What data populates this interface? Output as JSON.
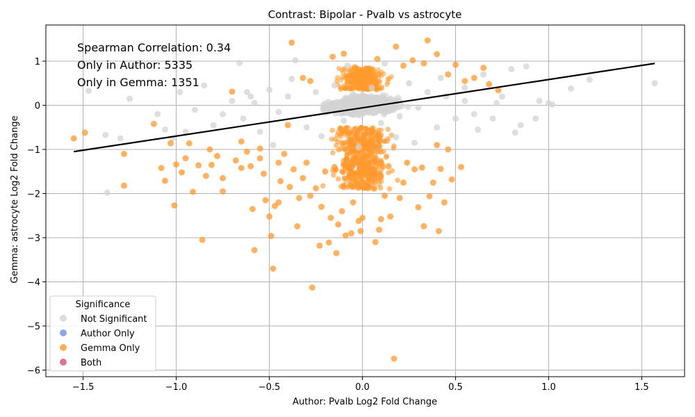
{
  "chart_data": {
    "type": "scatter",
    "title": "Contrast: Bipolar - Pvalb vs astrocyte",
    "xlabel": "Author: Pvalb Log2 Fold Change",
    "ylabel": "Gemma: astrocyte Log2 Fold Change",
    "xlim": [
      -1.7,
      1.73
    ],
    "ylim": [
      -6.15,
      1.82
    ],
    "xticks": [
      -1.5,
      -1.0,
      -0.5,
      0.0,
      0.5,
      1.0,
      1.5
    ],
    "xtick_labels": [
      "−1.5",
      "−1.0",
      "−0.5",
      "0.0",
      "0.5",
      "1.0",
      "1.5"
    ],
    "yticks": [
      1,
      0,
      -1,
      -2,
      -3,
      -4,
      -5,
      -6
    ],
    "ytick_labels": [
      "1",
      "0",
      "−1",
      "−2",
      "−3",
      "−4",
      "−5",
      "−6"
    ],
    "grid": true,
    "annotations": [
      "Spearman Correlation: 0.34",
      "Only in Author: 5335",
      "Only in Gemma: 1351"
    ],
    "legend": {
      "title": "Significance",
      "placement": "lower-left",
      "entries": [
        {
          "label": "Not Significant",
          "color": "#d3d3d3"
        },
        {
          "label": "Author Only",
          "color": "#6f8fdc"
        },
        {
          "label": "Gemma Only",
          "color": "#ff9a2e"
        },
        {
          "label": "Both",
          "color": "#d9536a"
        }
      ]
    },
    "regression_line": {
      "x": [
        -1.55,
        1.57
      ],
      "y": [
        -1.05,
        0.95
      ],
      "color": "#000000"
    },
    "series": [
      {
        "name": "Gemma Only",
        "color": "#ff9a2e",
        "points": [
          [
            -1.55,
            -0.75
          ],
          [
            -1.49,
            -0.62
          ],
          [
            -1.28,
            -1.1
          ],
          [
            -1.28,
            -1.82
          ],
          [
            -1.12,
            -0.42
          ],
          [
            -1.08,
            -1.42
          ],
          [
            -1.06,
            -1.71
          ],
          [
            -1.03,
            -0.86
          ],
          [
            -1.01,
            -2.27
          ],
          [
            -1.0,
            -1.34
          ],
          [
            -0.97,
            -1.52
          ],
          [
            -0.93,
            -0.86
          ],
          [
            -0.91,
            -1.96
          ],
          [
            -0.88,
            -1.36
          ],
          [
            -0.86,
            -3.05
          ],
          [
            -0.84,
            -1.6
          ],
          [
            -0.81,
            -1.35
          ],
          [
            -0.78,
            -1.15
          ],
          [
            -0.75,
            -1.65
          ],
          [
            -0.75,
            -1.95
          ],
          [
            -0.7,
            0.31
          ],
          [
            -0.68,
            -1.25
          ],
          [
            -0.65,
            -1.42
          ],
          [
            -0.62,
            -1.05
          ],
          [
            -0.6,
            -1.38
          ],
          [
            -0.59,
            -2.35
          ],
          [
            -0.58,
            -3.28
          ],
          [
            -0.55,
            -1.2
          ],
          [
            -0.53,
            -1.55
          ],
          [
            -0.52,
            -2.15
          ],
          [
            -0.5,
            -2.52
          ],
          [
            -0.49,
            -2.96
          ],
          [
            -0.48,
            -3.7
          ],
          [
            -0.47,
            -2.28
          ],
          [
            -0.45,
            -2.2
          ],
          [
            -0.44,
            -1.72
          ],
          [
            -0.42,
            -1.1
          ],
          [
            -0.4,
            -0.45
          ],
          [
            -0.39,
            -1.85
          ],
          [
            -0.38,
            1.42
          ],
          [
            -0.37,
            -1.45
          ],
          [
            -0.35,
            -2.74
          ],
          [
            -0.34,
            -2.1
          ],
          [
            -0.32,
            -1.65
          ],
          [
            -0.3,
            -1.3
          ],
          [
            -0.28,
            -2.05
          ],
          [
            -0.27,
            -4.13
          ],
          [
            -0.25,
            -1.88
          ],
          [
            -0.23,
            -3.18
          ],
          [
            -0.22,
            -2.3
          ],
          [
            -0.2,
            -1.5
          ],
          [
            -0.18,
            -3.11
          ],
          [
            -0.17,
            -2.55
          ],
          [
            -0.15,
            -1.4
          ],
          [
            -0.14,
            -3.35
          ],
          [
            -0.13,
            -2.7
          ],
          [
            -0.11,
            -2.4
          ],
          [
            -0.1,
            -1.85
          ],
          [
            -0.09,
            -2.95
          ],
          [
            -0.07,
            -1.6
          ],
          [
            -0.06,
            -2.9
          ],
          [
            -0.05,
            -2.2
          ],
          [
            -0.04,
            0.86
          ],
          [
            -0.03,
            -1.75
          ],
          [
            -0.01,
            -2.85
          ],
          [
            -0.02,
            -2.62
          ],
          [
            0.0,
            -2.55
          ],
          [
            0.02,
            -1.45
          ],
          [
            0.05,
            -1.5
          ],
          [
            0.07,
            -3.1
          ],
          [
            0.09,
            -2.82
          ],
          [
            0.1,
            -2.58
          ],
          [
            0.12,
            -2.05
          ],
          [
            0.14,
            -1.38
          ],
          [
            0.15,
            -2.52
          ],
          [
            0.17,
            -5.74
          ],
          [
            0.18,
            1.33
          ],
          [
            0.2,
            -2.1
          ],
          [
            0.22,
            -1.75
          ],
          [
            0.24,
            -1.3
          ],
          [
            0.28,
            -1.45
          ],
          [
            0.3,
            -2.31
          ],
          [
            0.32,
            -1.41
          ],
          [
            0.33,
            -2.74
          ],
          [
            0.35,
            1.47
          ],
          [
            0.36,
            -2.06
          ],
          [
            0.38,
            -1.75
          ],
          [
            0.4,
            1.16
          ],
          [
            0.41,
            -2.85
          ],
          [
            0.42,
            -1.44
          ],
          [
            0.44,
            -2.2
          ],
          [
            0.46,
            -1.0
          ],
          [
            0.48,
            -1.68
          ],
          [
            0.5,
            0.92
          ],
          [
            0.53,
            -1.4
          ],
          [
            0.55,
            0.55
          ],
          [
            0.6,
            0.62
          ],
          [
            0.65,
            0.85
          ],
          [
            0.68,
            0.48
          ],
          [
            0.73,
            0.34
          ],
          [
            -0.16,
            1.1
          ],
          [
            -0.1,
            1.17
          ],
          [
            0.08,
            1.05
          ],
          [
            0.22,
            0.9
          ],
          [
            0.27,
            1.02
          ],
          [
            0.33,
            0.95
          ],
          [
            -0.28,
            0.55
          ],
          [
            -0.32,
            0.62
          ],
          [
            0.46,
            0.7
          ],
          [
            -0.45,
            -1.3
          ],
          [
            -0.55,
            -0.98
          ],
          [
            -0.65,
            -0.82
          ],
          [
            -0.82,
            -1.0
          ],
          [
            -0.95,
            -1.2
          ],
          [
            0.4,
            -0.9
          ]
        ]
      },
      {
        "name": "Not Significant",
        "color": "#d3d3d3",
        "points": [
          [
            -1.47,
            0.33
          ],
          [
            -1.38,
            -0.67
          ],
          [
            -1.37,
            -1.98
          ],
          [
            -1.25,
            0.15
          ],
          [
            -1.1,
            -0.2
          ],
          [
            -1.06,
            -0.55
          ],
          [
            -1.02,
            -0.75
          ],
          [
            -0.98,
            0.3
          ],
          [
            -0.95,
            -0.6
          ],
          [
            -0.9,
            -0.1
          ],
          [
            -0.85,
            0.45
          ],
          [
            -0.8,
            -0.45
          ],
          [
            -0.75,
            -0.2
          ],
          [
            -0.7,
            0.1
          ],
          [
            -0.66,
            0.96
          ],
          [
            -0.64,
            -0.3
          ],
          [
            -0.6,
            0.2
          ],
          [
            -0.55,
            -0.6
          ],
          [
            -0.5,
            0.35
          ],
          [
            -0.45,
            -0.15
          ],
          [
            -0.4,
            0.2
          ],
          [
            -0.36,
            1.02
          ],
          [
            -0.3,
            -0.5
          ],
          [
            -0.25,
            0.3
          ],
          [
            -0.2,
            -0.1
          ],
          [
            -0.15,
            0.45
          ],
          [
            -0.1,
            -0.35
          ],
          [
            -0.05,
            0.25
          ],
          [
            0.0,
            -0.15
          ],
          [
            0.05,
            0.4
          ],
          [
            0.1,
            -0.4
          ],
          [
            0.15,
            0.15
          ],
          [
            0.2,
            -0.25
          ],
          [
            0.25,
            0.5
          ],
          [
            0.3,
            -0.05
          ],
          [
            0.35,
            0.3
          ],
          [
            0.4,
            -0.5
          ],
          [
            0.45,
            0.2
          ],
          [
            0.5,
            -0.3
          ],
          [
            0.55,
            0.1
          ],
          [
            0.6,
            -0.2
          ],
          [
            0.65,
            0.7
          ],
          [
            0.7,
            -0.3
          ],
          [
            0.75,
            0.2
          ],
          [
            0.8,
            0.82
          ],
          [
            0.82,
            -0.62
          ],
          [
            0.85,
            -0.45
          ],
          [
            0.88,
            0.88
          ],
          [
            0.93,
            -0.3
          ],
          [
            1.0,
            0.05
          ],
          [
            1.02,
            0.02
          ],
          [
            1.12,
            0.38
          ],
          [
            1.22,
            0.58
          ],
          [
            1.57,
            0.5
          ],
          [
            -0.08,
            0.9
          ],
          [
            0.12,
            0.95
          ],
          [
            -0.22,
            -0.7
          ],
          [
            0.18,
            -0.72
          ],
          [
            -0.38,
            0.6
          ],
          [
            0.42,
            0.62
          ],
          [
            -0.62,
            0.3
          ],
          [
            0.62,
            -0.55
          ],
          [
            -1.3,
            -0.75
          ],
          [
            0.95,
            0.1
          ],
          [
            -0.48,
            -0.9
          ],
          [
            0.28,
            -0.85
          ],
          [
            -0.02,
            -0.95
          ],
          [
            0.55,
            0.4
          ],
          [
            -0.58,
            0.05
          ],
          [
            0.72,
            0.05
          ]
        ]
      }
    ]
  }
}
